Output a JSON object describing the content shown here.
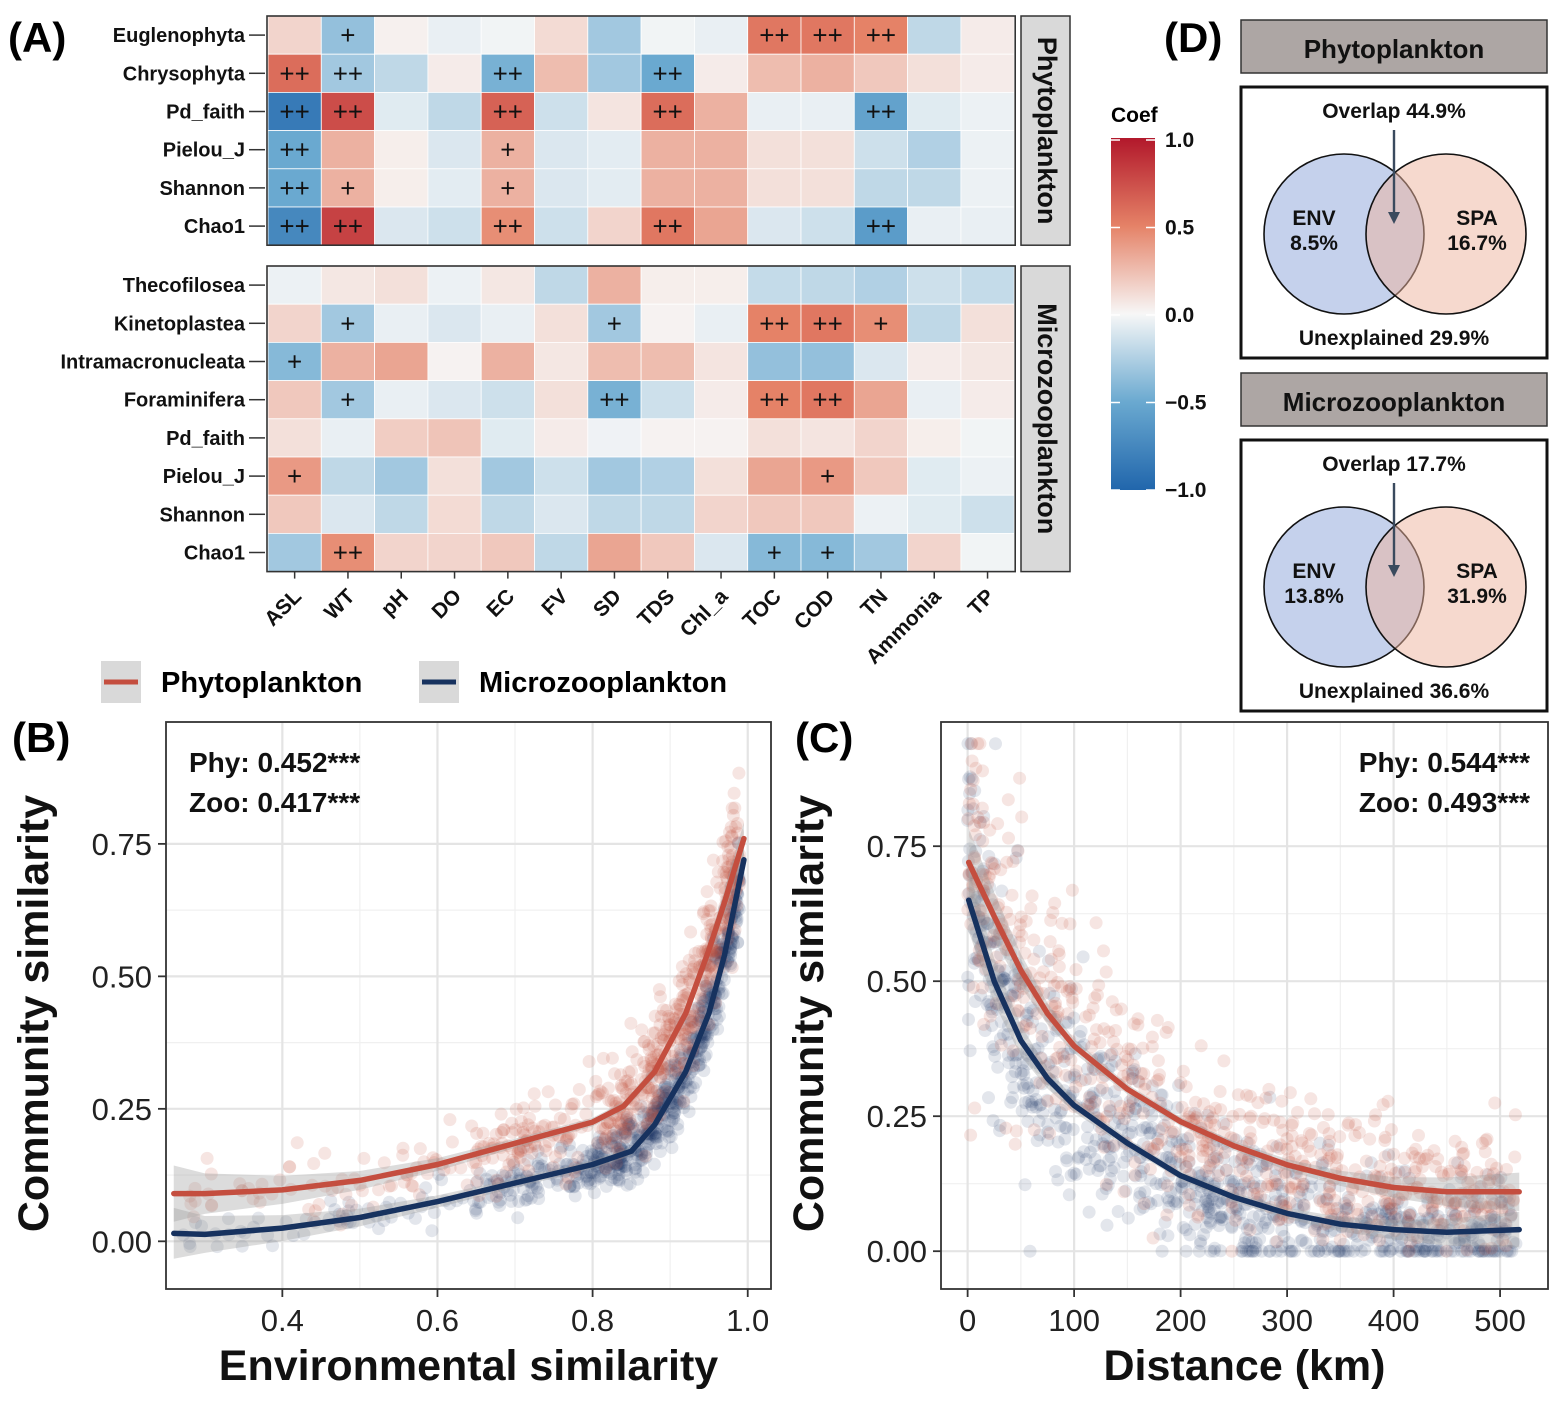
{
  "colors": {
    "phyto": "#C44E3F",
    "zoo": "#17325F",
    "strip_bg": "#D9D9D9",
    "venn_header_bg": "#ADA6A4",
    "env_fill": "#C5D1EC",
    "spa_fill": "#EEB39E",
    "grid": "#E4E4E4",
    "ci": "#9A9A9A"
  },
  "panels": {
    "a_label": "(A)",
    "b_label": "(B)",
    "c_label": "(C)",
    "d_label": "(D)"
  },
  "chart_data": [
    {
      "id": "A",
      "type": "heatmap",
      "columns": [
        "ASL",
        "WT",
        "pH",
        "DO",
        "EC",
        "FV",
        "SD",
        "TDS",
        "Chl_a",
        "TOC",
        "COD",
        "TN",
        "Ammonia",
        "TP"
      ],
      "legend": {
        "title": "Coef",
        "ticks": [
          "1.0",
          "0.5",
          "0.0",
          "−0.5",
          "−1.0"
        ],
        "range": [
          -1,
          1
        ]
      },
      "facets": [
        {
          "name": "Phytoplankton",
          "rows": [
            {
              "label": "Euglenophyta",
              "values": [
                0.15,
                -0.35,
                0.03,
                -0.05,
                -0.02,
                0.12,
                -0.3,
                -0.02,
                -0.05,
                0.55,
                0.55,
                0.5,
                -0.2,
                0.05
              ],
              "signif": [
                "",
                "+",
                "",
                "",
                "",
                "",
                "",
                "",
                "",
                "++",
                "++",
                "++",
                "",
                ""
              ]
            },
            {
              "label": "Chrysophyta",
              "values": [
                0.6,
                -0.3,
                -0.2,
                0.05,
                -0.45,
                0.25,
                -0.3,
                -0.5,
                0.05,
                0.25,
                0.3,
                0.2,
                0.1,
                0.05
              ],
              "signif": [
                "++",
                "++",
                "",
                "",
                "++",
                "",
                "",
                "++",
                "",
                "",
                "",
                "",
                "",
                ""
              ]
            },
            {
              "label": "Pd_faith",
              "values": [
                -0.85,
                0.75,
                -0.08,
                -0.2,
                0.65,
                -0.15,
                0.08,
                0.6,
                0.3,
                -0.05,
                -0.05,
                -0.55,
                -0.08,
                -0.04
              ],
              "signif": [
                "++",
                "++",
                "",
                "",
                "++",
                "",
                "",
                "++",
                "",
                "",
                "",
                "++",
                "",
                ""
              ]
            },
            {
              "label": "Pielou_J",
              "values": [
                -0.5,
                0.3,
                0.04,
                -0.1,
                0.3,
                -0.1,
                -0.07,
                0.3,
                0.3,
                0.1,
                0.1,
                -0.15,
                -0.25,
                -0.04
              ],
              "signif": [
                "++",
                "",
                "",
                "",
                "+",
                "",
                "",
                "",
                "",
                "",
                "",
                "",
                "",
                ""
              ]
            },
            {
              "label": "Shannon",
              "values": [
                -0.5,
                0.3,
                0.04,
                -0.07,
                0.3,
                -0.1,
                -0.07,
                0.3,
                0.3,
                0.1,
                0.1,
                -0.2,
                -0.2,
                -0.04
              ],
              "signif": [
                "++",
                "+",
                "",
                "",
                "+",
                "",
                "",
                "",
                "",
                "",
                "",
                "",
                "",
                ""
              ]
            },
            {
              "label": "Chao1",
              "values": [
                -0.75,
                0.8,
                -0.1,
                -0.15,
                0.45,
                -0.15,
                0.15,
                0.55,
                0.35,
                -0.1,
                -0.15,
                -0.6,
                -0.05,
                -0.05
              ],
              "signif": [
                "++",
                "++",
                "",
                "",
                "++",
                "",
                "",
                "++",
                "",
                "",
                "",
                "++",
                "",
                ""
              ]
            }
          ]
        },
        {
          "name": "Microzooplankton",
          "rows": [
            {
              "label": "Thecofilosea",
              "values": [
                -0.04,
                0.07,
                0.1,
                -0.04,
                0.07,
                -0.2,
                0.3,
                0.04,
                0.04,
                -0.18,
                -0.2,
                -0.25,
                -0.15,
                -0.18
              ],
              "signif": [
                "",
                "",
                "",
                "",
                "",
                "",
                "",
                "",
                "",
                "",
                "",
                "",
                "",
                ""
              ]
            },
            {
              "label": "Kinetoplastea",
              "values": [
                0.15,
                -0.3,
                -0.05,
                -0.1,
                -0.05,
                0.1,
                -0.3,
                0.02,
                -0.05,
                0.5,
                0.55,
                0.45,
                -0.2,
                0.1
              ],
              "signif": [
                "",
                "+",
                "",
                "",
                "",
                "",
                "+",
                "",
                "",
                "++",
                "++",
                "+",
                "",
                ""
              ]
            },
            {
              "label": "Intramacronucleata",
              "values": [
                -0.4,
                0.3,
                0.35,
                0.02,
                0.3,
                0.07,
                0.25,
                0.25,
                0.08,
                -0.35,
                -0.35,
                -0.1,
                0.05,
                0.07
              ],
              "signif": [
                "+",
                "",
                "",
                "",
                "",
                "",
                "",
                "",
                "",
                "",
                "",
                "",
                "",
                ""
              ]
            },
            {
              "label": "Foraminifera",
              "values": [
                0.2,
                -0.3,
                -0.05,
                -0.1,
                -0.15,
                0.1,
                -0.45,
                -0.15,
                0.05,
                0.5,
                0.55,
                0.35,
                -0.05,
                0.05
              ],
              "signif": [
                "",
                "+",
                "",
                "",
                "",
                "",
                "++",
                "",
                "",
                "++",
                "++",
                "",
                "",
                ""
              ]
            },
            {
              "label": "Pd_faith",
              "values": [
                0.1,
                -0.05,
                0.18,
                0.22,
                -0.08,
                0.05,
                -0.03,
                0.02,
                0.02,
                0.1,
                0.08,
                0.15,
                0.04,
                -0.02
              ],
              "signif": [
                "",
                "",
                "",
                "",
                "",
                "",
                "",
                "",
                "",
                "",
                "",
                "",
                "",
                ""
              ]
            },
            {
              "label": "Pielou_J",
              "values": [
                0.4,
                -0.2,
                -0.3,
                0.1,
                -0.3,
                -0.15,
                -0.3,
                -0.25,
                0.1,
                0.35,
                0.4,
                0.2,
                -0.08,
                -0.04
              ],
              "signif": [
                "+",
                "",
                "",
                "",
                "",
                "",
                "",
                "",
                "",
                "",
                "+",
                "",
                "",
                ""
              ]
            },
            {
              "label": "Shannon",
              "values": [
                0.2,
                -0.1,
                -0.2,
                0.12,
                -0.2,
                -0.1,
                -0.2,
                -0.2,
                0.15,
                0.2,
                0.2,
                -0.04,
                -0.08,
                -0.15
              ],
              "signif": [
                "",
                "",
                "",
                "",
                "",
                "",
                "",
                "",
                "",
                "",
                "",
                "",
                "",
                ""
              ]
            },
            {
              "label": "Chao1",
              "values": [
                -0.3,
                0.45,
                0.15,
                0.15,
                0.2,
                -0.2,
                0.35,
                0.2,
                -0.1,
                -0.4,
                -0.4,
                -0.3,
                0.15,
                -0.02
              ],
              "signif": [
                "",
                "++",
                "",
                "",
                "",
                "",
                "",
                "",
                "",
                "+",
                "+",
                "",
                "",
                ""
              ]
            }
          ]
        }
      ]
    },
    {
      "id": "B",
      "type": "scatter",
      "xlabel": "Environmental similarity",
      "ylabel": "Community similarity",
      "xlim": [
        0.25,
        1.03
      ],
      "ylim": [
        -0.09,
        0.98
      ],
      "xticks": [
        0.4,
        0.6,
        0.8,
        1.0
      ],
      "xtick_labels": [
        "0.4",
        "0.6",
        "0.8",
        "1.0"
      ],
      "yticks": [
        0.0,
        0.25,
        0.5,
        0.75
      ],
      "ytick_labels": [
        "0.00",
        "0.25",
        "0.50",
        "0.75"
      ],
      "annotations": [
        "Phy: 0.452***",
        "Zoo: 0.417***"
      ],
      "series": [
        {
          "name": "Phytoplankton",
          "fit_x": [
            0.26,
            0.3,
            0.4,
            0.5,
            0.6,
            0.7,
            0.8,
            0.84,
            0.88,
            0.92,
            0.95,
            0.97,
            0.995
          ],
          "fit_y": [
            0.09,
            0.09,
            0.097,
            0.115,
            0.145,
            0.185,
            0.225,
            0.255,
            0.32,
            0.43,
            0.55,
            0.64,
            0.76
          ],
          "ci_halfwidth_end": 0.045
        },
        {
          "name": "Microzooplankton",
          "fit_x": [
            0.26,
            0.3,
            0.4,
            0.5,
            0.6,
            0.7,
            0.8,
            0.85,
            0.88,
            0.92,
            0.95,
            0.97,
            0.995
          ],
          "fit_y": [
            0.015,
            0.013,
            0.025,
            0.045,
            0.075,
            0.11,
            0.145,
            0.17,
            0.22,
            0.32,
            0.43,
            0.54,
            0.72
          ],
          "ci_halfwidth_end": 0.04
        }
      ]
    },
    {
      "id": "C",
      "type": "scatter",
      "xlabel": "Distance (km)",
      "ylabel": "Community similarity",
      "xlim": [
        -25,
        545
      ],
      "ylim": [
        -0.07,
        0.98
      ],
      "xticks": [
        0,
        100,
        200,
        300,
        400,
        500
      ],
      "xtick_labels": [
        "0",
        "100",
        "200",
        "300",
        "400",
        "500"
      ],
      "yticks": [
        0.0,
        0.25,
        0.5,
        0.75
      ],
      "ytick_labels": [
        "0.00",
        "0.25",
        "0.50",
        "0.75"
      ],
      "annotations": [
        "Phy: 0.544***",
        "Zoo: 0.493***"
      ],
      "series": [
        {
          "name": "Phytoplankton",
          "fit_x": [
            1,
            25,
            50,
            75,
            100,
            150,
            200,
            250,
            300,
            350,
            400,
            450,
            518
          ],
          "fit_y": [
            0.72,
            0.62,
            0.52,
            0.44,
            0.38,
            0.3,
            0.24,
            0.195,
            0.16,
            0.135,
            0.118,
            0.11,
            0.11
          ],
          "ci_halfwidth_end": 0.055
        },
        {
          "name": "Microzooplankton",
          "fit_x": [
            1,
            25,
            50,
            75,
            100,
            150,
            200,
            250,
            300,
            350,
            400,
            450,
            518
          ],
          "fit_y": [
            0.65,
            0.5,
            0.39,
            0.32,
            0.27,
            0.2,
            0.14,
            0.1,
            0.07,
            0.05,
            0.04,
            0.035,
            0.04
          ],
          "ci_halfwidth_end": 0.05
        }
      ]
    },
    {
      "id": "D",
      "type": "venn",
      "groups": [
        {
          "title": "Phytoplankton",
          "overlap": "Overlap 44.9%",
          "env_label": "ENV",
          "env_value": "8.5%",
          "spa_label": "SPA",
          "spa_value": "16.7%",
          "unexplained": "Unexplained 29.9%"
        },
        {
          "title": "Microzooplankton",
          "overlap": "Overlap 17.7%",
          "env_label": "ENV",
          "env_value": "13.8%",
          "spa_label": "SPA",
          "spa_value": "31.9%",
          "unexplained": "Unexplained 36.6%"
        }
      ]
    }
  ],
  "legend": {
    "phyto": "Phytoplankton",
    "zoo": "Microzooplankton"
  }
}
